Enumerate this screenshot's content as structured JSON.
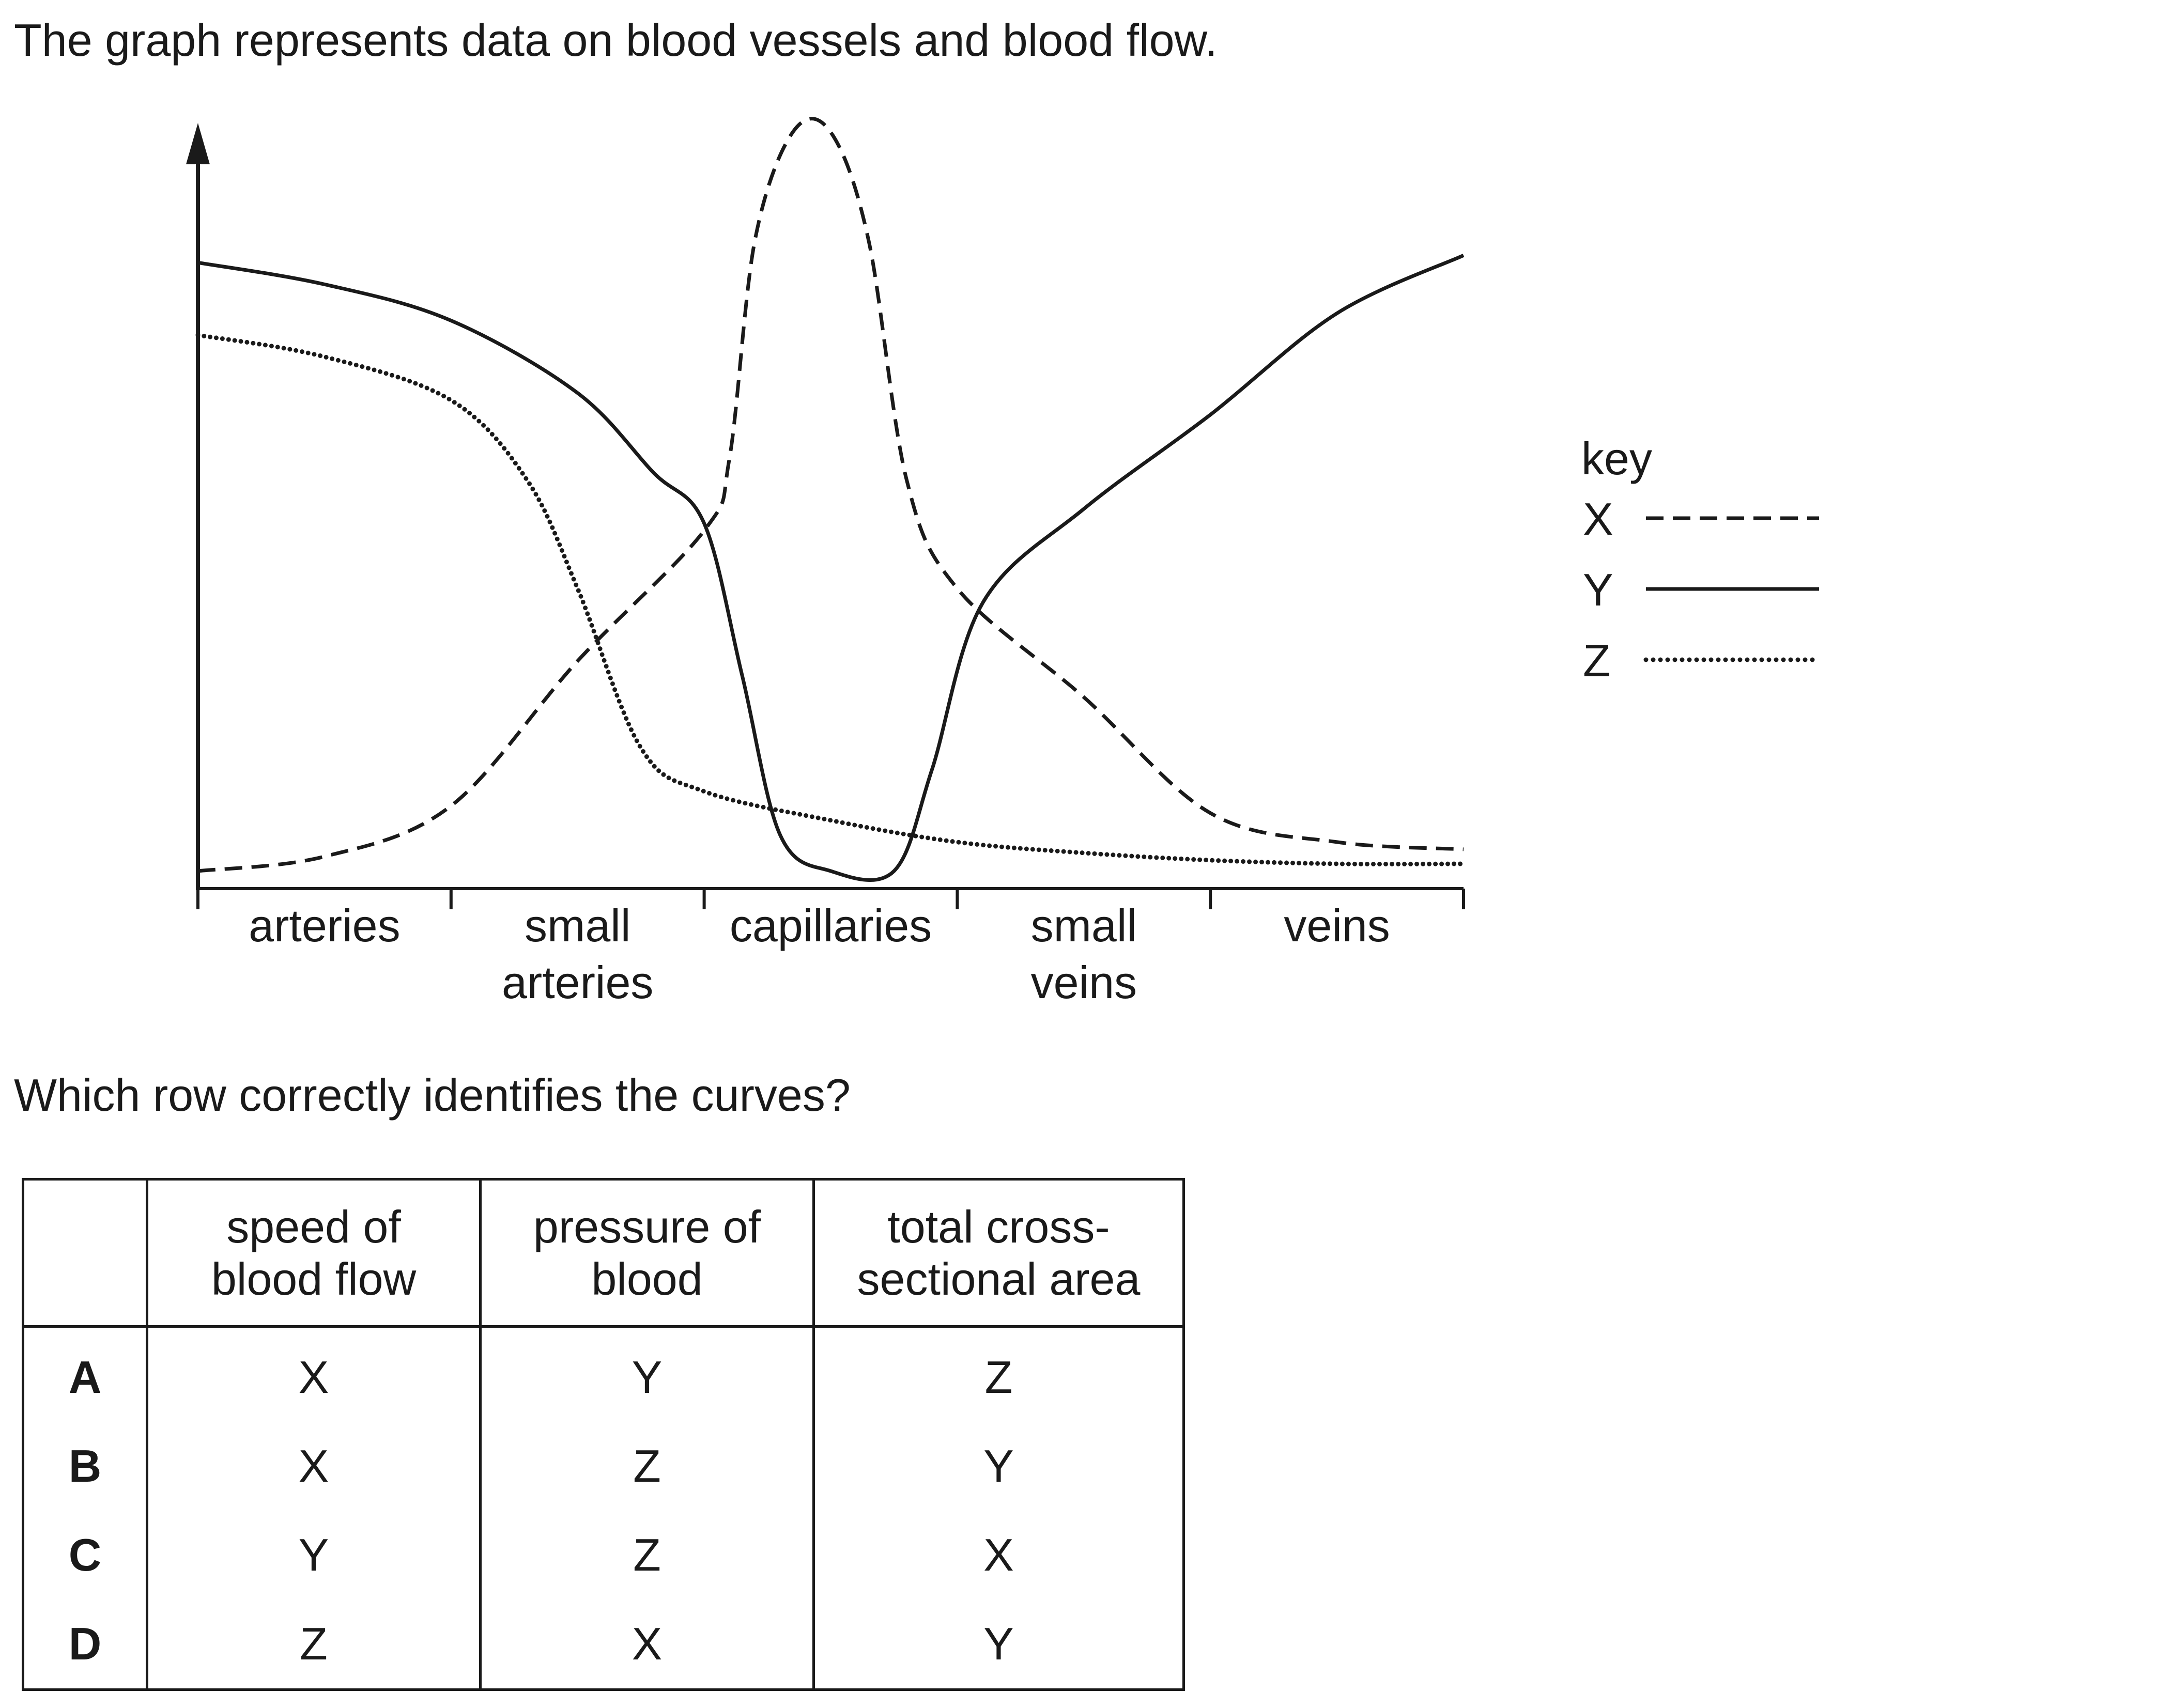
{
  "stem": {
    "intro": "The graph represents data on blood vessels and blood flow.",
    "question": "Which row correctly identifies the curves?"
  },
  "chart_data": {
    "type": "line",
    "x_categories": [
      {
        "line1": "arteries",
        "line2": ""
      },
      {
        "line1": "small",
        "line2": "arteries"
      },
      {
        "line1": "capillaries",
        "line2": ""
      },
      {
        "line1": "small",
        "line2": "veins"
      },
      {
        "line1": "veins",
        "line2": ""
      }
    ],
    "x_range": [
      0,
      5
    ],
    "y_range": [
      0,
      100
    ],
    "y_ticks": false,
    "legend_placement": "right",
    "legend_title": "key",
    "series": [
      {
        "name": "X",
        "style": "dashed",
        "points": [
          [
            0,
            1
          ],
          [
            0.5,
            3
          ],
          [
            1,
            10
          ],
          [
            1.5,
            30
          ],
          [
            2,
            48
          ],
          [
            2.1,
            58
          ],
          [
            2.2,
            88
          ],
          [
            2.35,
            103
          ],
          [
            2.5,
            103
          ],
          [
            2.65,
            88
          ],
          [
            2.8,
            55
          ],
          [
            3,
            40
          ],
          [
            3.5,
            25
          ],
          [
            4,
            9
          ],
          [
            4.5,
            5
          ],
          [
            5,
            4
          ]
        ]
      },
      {
        "name": "Y",
        "style": "solid",
        "points": [
          [
            0,
            85
          ],
          [
            0.5,
            82
          ],
          [
            1,
            77
          ],
          [
            1.5,
            67
          ],
          [
            1.8,
            56
          ],
          [
            2,
            49
          ],
          [
            2.15,
            28
          ],
          [
            2.3,
            6
          ],
          [
            2.5,
            1
          ],
          [
            2.75,
            1
          ],
          [
            2.9,
            15
          ],
          [
            3.1,
            38
          ],
          [
            3.5,
            51
          ],
          [
            4,
            64
          ],
          [
            4.5,
            78
          ],
          [
            5,
            86
          ]
        ]
      },
      {
        "name": "Z",
        "style": "dotted",
        "points": [
          [
            0,
            75
          ],
          [
            0.5,
            72
          ],
          [
            1,
            66
          ],
          [
            1.3,
            55
          ],
          [
            1.5,
            40
          ],
          [
            1.75,
            18
          ],
          [
            2,
            12
          ],
          [
            2.5,
            8
          ],
          [
            3,
            5
          ],
          [
            3.5,
            3.5
          ],
          [
            4,
            2.5
          ],
          [
            4.5,
            2
          ],
          [
            5,
            2
          ]
        ]
      }
    ]
  },
  "table": {
    "headers": [
      {
        "line1": "",
        "line2": ""
      },
      {
        "line1": "speed of",
        "line2": "blood flow"
      },
      {
        "line1": "pressure of",
        "line2": "blood"
      },
      {
        "line1": "total cross-",
        "line2": "sectional area"
      }
    ],
    "rows": [
      {
        "key": "A",
        "speed": "X",
        "pressure": "Y",
        "area": "Z"
      },
      {
        "key": "B",
        "speed": "X",
        "pressure": "Z",
        "area": "Y"
      },
      {
        "key": "C",
        "speed": "Y",
        "pressure": "Z",
        "area": "X"
      },
      {
        "key": "D",
        "speed": "Z",
        "pressure": "X",
        "area": "Y"
      }
    ]
  },
  "colors": {
    "ink": "#1a1a1a",
    "background": "#ffffff"
  }
}
